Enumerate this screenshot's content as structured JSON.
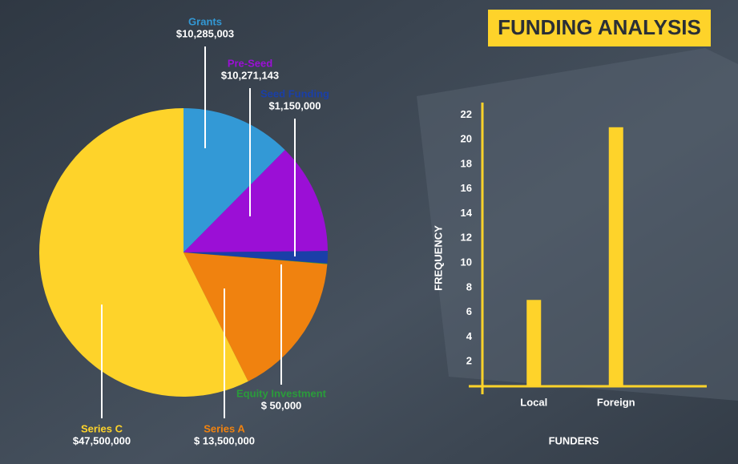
{
  "title": "FUNDING ANALYSIS",
  "chart_data": [
    {
      "type": "pie",
      "categories": [
        "Grants",
        "Pre-Seed",
        "Seed Funding",
        "Equity Investment",
        "Series A",
        "Series C"
      ],
      "values": [
        10285003,
        10271143,
        1150000,
        50000,
        13500000,
        47500000
      ],
      "value_labels": [
        "$10,285,003",
        "$10,271,143",
        "$1,150,000",
        "$ 50,000",
        "$ 13,500,000",
        "$47,500,000"
      ],
      "colors": [
        "#3399d6",
        "#9b0fd6",
        "#1a3fa8",
        "#2a9c3a",
        "#f0820f",
        "#fed32a"
      ]
    },
    {
      "type": "bar",
      "categories": [
        "Local",
        "Foreign"
      ],
      "values": [
        7,
        21
      ],
      "color": "#fed32a",
      "x_label": "FUNDERS",
      "y_label": "FREQUENCY",
      "ylim": [
        0,
        23
      ],
      "yticks": [
        2,
        4,
        6,
        8,
        10,
        12,
        14,
        16,
        18,
        20,
        22
      ]
    }
  ]
}
